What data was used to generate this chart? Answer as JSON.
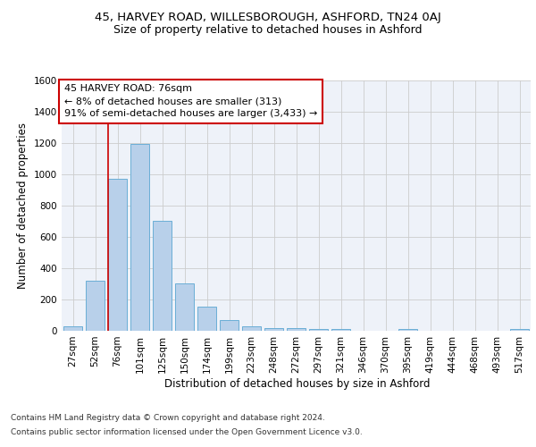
{
  "title_line1": "45, HARVEY ROAD, WILLESBOROUGH, ASHFORD, TN24 0AJ",
  "title_line2": "Size of property relative to detached houses in Ashford",
  "xlabel": "Distribution of detached houses by size in Ashford",
  "ylabel": "Number of detached properties",
  "bar_labels": [
    "27sqm",
    "52sqm",
    "76sqm",
    "101sqm",
    "125sqm",
    "150sqm",
    "174sqm",
    "199sqm",
    "223sqm",
    "248sqm",
    "272sqm",
    "297sqm",
    "321sqm",
    "346sqm",
    "370sqm",
    "395sqm",
    "419sqm",
    "444sqm",
    "468sqm",
    "493sqm",
    "517sqm"
  ],
  "bar_values": [
    30,
    320,
    970,
    1195,
    700,
    305,
    155,
    70,
    30,
    20,
    15,
    12,
    12,
    0,
    0,
    13,
    0,
    0,
    0,
    0,
    13
  ],
  "bar_color": "#b8d0ea",
  "bar_edge_color": "#6aaed6",
  "vline_color": "#cc0000",
  "annotation_text": "45 HARVEY ROAD: 76sqm\n← 8% of detached houses are smaller (313)\n91% of semi-detached houses are larger (3,433) →",
  "annotation_box_color": "#ffffff",
  "annotation_box_edge_color": "#cc0000",
  "ylim": [
    0,
    1600
  ],
  "yticks": [
    0,
    200,
    400,
    600,
    800,
    1000,
    1200,
    1400,
    1600
  ],
  "grid_color": "#cccccc",
  "background_color": "#ffffff",
  "plot_bg_color": "#eef2f9",
  "footer_line1": "Contains HM Land Registry data © Crown copyright and database right 2024.",
  "footer_line2": "Contains public sector information licensed under the Open Government Licence v3.0.",
  "title_fontsize": 9.5,
  "subtitle_fontsize": 9,
  "axis_label_fontsize": 8.5,
  "tick_fontsize": 7.5,
  "annotation_fontsize": 8,
  "footer_fontsize": 6.5
}
